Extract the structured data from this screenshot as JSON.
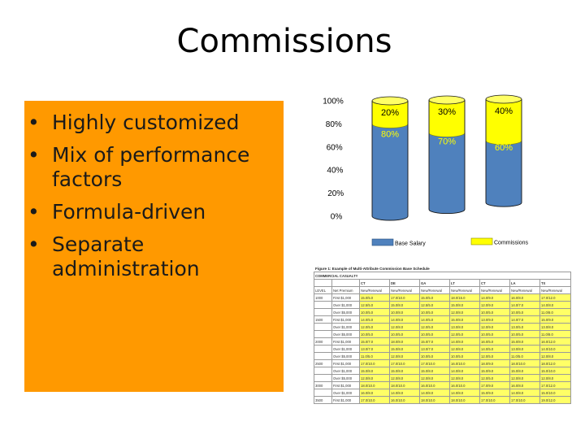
{
  "slide": {
    "title": "Commissions",
    "bullets": [
      "Highly customized",
      "Mix of performance factors",
      "Formula-driven",
      "Separate administration"
    ],
    "bullet_char": "•",
    "box_color": "#FF9900"
  },
  "chart_data": {
    "type": "bar",
    "stacked": true,
    "percent": true,
    "categories": [
      "",
      "",
      ""
    ],
    "series": [
      {
        "name": "Base Salary",
        "values": [
          80,
          70,
          60
        ],
        "color": "#4F81BD"
      },
      {
        "name": "Commissions",
        "values": [
          20,
          30,
          40
        ],
        "color": "#FFFF00"
      }
    ],
    "ylim": [
      0,
      100
    ],
    "yticks": [
      "0%",
      "20%",
      "40%",
      "60%",
      "80%",
      "100%"
    ],
    "labels": {
      "base": [
        "80%",
        "70%",
        "60%"
      ],
      "comm": [
        "20%",
        "30%",
        "40%"
      ]
    },
    "legend_placement": "bottom"
  },
  "table": {
    "caption": "Figure 1: Example of Multi-Attribute Commission Base Schedule",
    "section": "COMMERCIAL CASUALTY",
    "header1": [
      "",
      "",
      "CT",
      "DE",
      "GA",
      "LT",
      "CT",
      "LA",
      "TX"
    ],
    "header2": [
      "LEVEL",
      "Net Premium",
      "New/Renewal",
      "New/Renewal",
      "New/Renewal",
      "New/Renewal",
      "New/Renewal",
      "New/Renewal",
      "New/Renewal"
    ],
    "rows": [
      [
        "1000",
        "First $1,000",
        "15.0/5.0",
        "17.0/10.0",
        "15.0/5.0",
        "18.0/15.0",
        "14.0/9.0",
        "16.0/8.0",
        "17.0/12.0"
      ],
      [
        "",
        "Over $1,000",
        "12.5/5.0",
        "15.0/8.0",
        "12.5/5.0",
        "15.0/8.0",
        "12.0/9.0",
        "14.0/7.0",
        "14.0/8.0"
      ],
      [
        "",
        "Over $5,000",
        "10.0/5.0",
        "10.0/8.0",
        "10.0/5.0",
        "12.0/8.0",
        "10.0/5.0",
        "10.0/5.0",
        "11.0/8.0"
      ],
      [
        "1500",
        "First $1,000",
        "14.0/5.0",
        "14.0/8.0",
        "14.0/5.0",
        "15.0/8.0",
        "13.0/9.0",
        "14.0/7.0",
        "15.0/9.0"
      ],
      [
        "",
        "Over $1,000",
        "12.0/5.0",
        "12.0/8.0",
        "12.0/5.0",
        "13.0/8.0",
        "12.0/9.0",
        "13.0/5.0",
        "13.0/8.0"
      ],
      [
        "",
        "Over $5,000",
        "10.0/5.0",
        "10.0/5.0",
        "10.0/5.0",
        "12.0/5.0",
        "10.0/5.0",
        "10.0/5.0",
        "11.0/8.0"
      ],
      [
        "2000",
        "First $1,000",
        "15.0/7.0",
        "18.0/8.0",
        "15.0/7.0",
        "14.0/8.0",
        "16.0/5.0",
        "15.0/8.0",
        "16.0/12.0"
      ],
      [
        "",
        "Over $1,000",
        "13.0/7.0",
        "15.0/8.0",
        "13.0/7.0",
        "12.0/8.0",
        "14.0/5.0",
        "13.0/8.0",
        "14.0/10.0"
      ],
      [
        "",
        "Over $5,000",
        "11.0/5.0",
        "12.0/8.0",
        "10.0/5.0",
        "10.0/5.0",
        "12.0/5.0",
        "11.0/5.0",
        "12.0/8.0"
      ],
      [
        "2500",
        "First $1,000",
        "17.0/10.0",
        "17.0/10.0",
        "17.0/10.0",
        "16.0/10.0",
        "18.0/9.0",
        "18.0/10.0",
        "18.0/12.0"
      ],
      [
        "",
        "Over $1,000",
        "15.0/8.0",
        "15.0/8.0",
        "15.0/8.0",
        "14.0/8.0",
        "15.0/9.0",
        "15.0/8.0",
        "15.0/10.0"
      ],
      [
        "",
        "Over $5,000",
        "12.0/8.0",
        "12.0/8.0",
        "12.0/8.0",
        "12.0/8.0",
        "12.0/5.0",
        "12.0/8.0",
        "12.0/8.0"
      ],
      [
        "3000",
        "First $1,000",
        "18.0/10.0",
        "18.0/10.0",
        "16.0/10.0",
        "16.0/10.0",
        "17.0/9.0",
        "16.0/8.0",
        "17.0/12.0"
      ],
      [
        "",
        "Over $1,000",
        "16.0/8.0",
        "14.0/8.0",
        "14.0/8.0",
        "14.0/8.0",
        "15.0/9.0",
        "14.0/8.0",
        "15.0/10.0"
      ],
      [
        "3500",
        "First $1,000",
        "17.0/10.0",
        "16.0/10.0",
        "18.0/10.0",
        "18.0/10.0",
        "17.0/10.0",
        "17.0/10.0",
        "19.0/12.0"
      ]
    ]
  }
}
